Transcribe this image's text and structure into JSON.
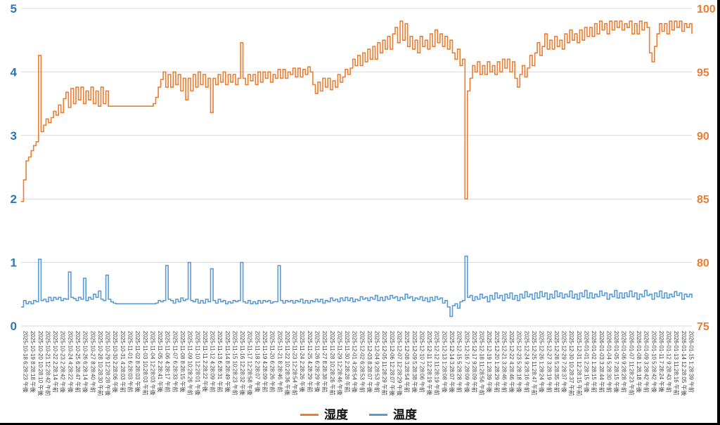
{
  "page": {
    "background": "#ffffff"
  },
  "chart_data": {
    "type": "line",
    "title": "",
    "grid": true,
    "grid_color": "#D9D9D9",
    "tick_label_color": "#404040",
    "legend_position": "bottom",
    "points_per_label": 3,
    "left_axis": {
      "min": 0,
      "max": 5,
      "ticks": [
        0,
        1,
        2,
        3,
        4,
        5
      ],
      "label_color": "#2E75B6"
    },
    "right_axis": {
      "min": 75,
      "max": 100,
      "ticks": [
        75,
        80,
        85,
        90,
        95,
        100
      ],
      "label_color": "#ED7D31"
    },
    "x_labels": [
      "2025-10-18 6:28:23 午後",
      "2025-10-19 8:28:18 午後",
      "2025-10-20 10:28:10 午後",
      "2025-10-21 12:28:42 午前",
      "2025-10-22 2:28:14 午前",
      "2025-10-23 2:28:42 午後",
      "2025-10-24 4:28:22 午後",
      "2025-10-25 6:28:47 午前",
      "2025-10-26 6:28:14 午後",
      "2025-10-27 8:28:40 午前",
      "2025-10-28 10:28:30 午前",
      "2025-10-29 12:28:28 午後",
      "2025-10-30 2:28:06 午後",
      "2025-10-31 4:28:03 午前",
      "2025-11-01 6:28:03 午前",
      "2025-11-02 8:28:03 午後",
      "2025-11-03 10:28:03 午前",
      "2025-11-04 12:28:03 午後",
      "2025-11-05 2:28:41 午後",
      "2025-11-06 4:28:17 午前",
      "2025-11-07 6:28:33 午前",
      "2025-11-08 8:28:15 午後",
      "2025-11-09 10:28:26 午前",
      "2025-11-10 12:28:01 午後",
      "2025-11-11 2:28:22 午後",
      "2025-11-12 4:28:09 午前",
      "2025-11-13 6:28:31 午前",
      "2025-11-14 8:28:49 午後",
      "2025-11-15 10:28:23 午前",
      "2025-11-16 12:28:32 午後",
      "2025-11-17 12:28:58 午後",
      "2025-11-18 2:28:07 午後",
      "2025-11-19 4:28:09 午前",
      "2025-11-20 6:28:26 午前",
      "2025-11-21 8:28:46 午前",
      "2025-11-22 10:28:36 午後",
      "2025-11-23 12:28:54 午前",
      "2025-11-24 2:28:26 午後",
      "2025-11-25 4:28:29 午前",
      "2025-11-26 6:28:29 午後",
      "2025-11-27 8:28:38 午前",
      "2025-11-28 10:28:26 午前",
      "2025-11-29 12:28:46 午後",
      "2025-11-30 2:28:28 午前",
      "2025-12-01 4:28:54 午後",
      "2025-12-02 6:28:53 午前",
      "2025-12-03 8:28:07 午後",
      "2025-12-04 9:28:53 午前",
      "2025-12-05 11:28:29 午前",
      "2025-12-06 12:28:07 午後",
      "2025-12-07 12:28:29 午後",
      "2025-12-08 3:28:54 午前",
      "2025-12-09 5:28:38 午後",
      "2025-12-10 7:28:06 午前",
      "2025-12-11 12:28:19 午後",
      "2025-12-12 11:28:19 午前",
      "2025-12-13 1:28:08 午後",
      "2025-12-14 3:28:07 午後",
      "2025-12-15 5:28:28 午前",
      "2025-12-16 7:28:09 午後",
      "2025-12-17 9:28:09 午前",
      "2025-12-18 11:28:56 午前",
      "2025-12-19 1:28:39 午後",
      "2025-12-20 1:28:29 午前",
      "2025-12-21 3:28:46 午前",
      "2025-12-22 4:28:46 午後",
      "2025-12-23 5:28:18 午後",
      "2025-12-24 9:28:16 午前",
      "2025-12-25 11:28:47 午前",
      "2025-12-26 1:28:24 午後",
      "2025-12-27 3:28:19 午前",
      "2025-12-28 5:28:35 午前",
      "2025-12-29 7:28:37 午後",
      "2025-12-30 10:28:37 午前",
      "2025-12-31 12:28:15 午前",
      "2026-01-01 2:28:15 午後",
      "2026-01-02 1:28:15 午前",
      "2026-01-03 3:28:44 午前",
      "2026-01-04 5:28:30 午前",
      "2026-01-05 7:28:15 午後",
      "2026-01-06 9:28:28 午前",
      "2026-01-07 11:28:23 午前",
      "2026-01-08 1:28:18 午後",
      "2026-01-09 3:28:42 午前",
      "2026-01-10 5:28:42 午後",
      "2026-01-11 7:28:24 午後",
      "2026-01-12 9:28:43 午前",
      "2026-01-13 11:28:16 午前",
      "2026-01-14 12:28:05 午後",
      "2026-01-15 1:28:39 午前"
    ],
    "series": [
      {
        "name": "湿度",
        "color": "#ED7D31",
        "axis": "right",
        "values": [
          84.8,
          86.5,
          88,
          88.3,
          88.8,
          89.2,
          89.5,
          96.3,
          90.3,
          90.8,
          91.3,
          91,
          91.4,
          91.9,
          91.6,
          92.4,
          91.8,
          92.9,
          93.4,
          92.2,
          93.7,
          92.5,
          93.8,
          92.8,
          93.8,
          92.5,
          93.5,
          92.8,
          93.8,
          92.5,
          93.5,
          92.3,
          93.8,
          92.5,
          93.5,
          92.3,
          92.3,
          92.3,
          92.3,
          92.3,
          92.3,
          92.3,
          92.3,
          92.3,
          92.3,
          92.3,
          92.3,
          92.3,
          92.3,
          92.3,
          92.3,
          92.3,
          92.3,
          92.5,
          93,
          93.8,
          94.4,
          95,
          93.8,
          94.8,
          93.8,
          95,
          94,
          94.8,
          93.5,
          94.5,
          92.8,
          94.5,
          93.5,
          94.8,
          93.8,
          95,
          94,
          94.8,
          93.8,
          94.5,
          91.8,
          94.5,
          94,
          94.8,
          94.2,
          95,
          94,
          94.8,
          94.2,
          94.8,
          94,
          94.5,
          97.3,
          94.5,
          94,
          94.8,
          94.3,
          94.8,
          94,
          95,
          94.2,
          95,
          94.5,
          95,
          94.2,
          94.8,
          94.5,
          95.2,
          94.5,
          95.2,
          94.5,
          95,
          94.8,
          95.3,
          94.6,
          95.3,
          94.6,
          95.2,
          94.8,
          95.4,
          95,
          94,
          93.3,
          94.2,
          93.5,
          94.5,
          93.8,
          94.5,
          93.6,
          94.3,
          93.8,
          94.8,
          94.2,
          94.6,
          95.2,
          94.8,
          95.3,
          96,
          95.5,
          96.3,
          95.5,
          96.5,
          95.8,
          96.8,
          96,
          97,
          96,
          97.3,
          96.5,
          97.5,
          96.8,
          97.8,
          96.8,
          98,
          98.5,
          97.3,
          99,
          97.5,
          98.8,
          97,
          97.8,
          96.8,
          97.5,
          96.5,
          97.8,
          97,
          97.5,
          96.8,
          98,
          97,
          98.3,
          97.3,
          98,
          97,
          97.8,
          96.8,
          97.5,
          96.5,
          96,
          96.8,
          95.5,
          96,
          85,
          93.5,
          94.5,
          95.5,
          95,
          95.8,
          94.8,
          95.5,
          94.8,
          95.8,
          95,
          95.5,
          94.8,
          95.8,
          95,
          96,
          95.3,
          96,
          95,
          95.8,
          94.5,
          93.8,
          94.8,
          95.5,
          94.6,
          95.3,
          96.3,
          95.5,
          96.5,
          97.3,
          96.3,
          97,
          98,
          96.8,
          97.5,
          96.8,
          97.8,
          97,
          97.5,
          96.8,
          98,
          97.3,
          98.3,
          97.5,
          98,
          97.3,
          98.3,
          97.5,
          98.5,
          97.8,
          98.5,
          97.8,
          98.8,
          98,
          99,
          98.3,
          98.8,
          98,
          99,
          98.3,
          99,
          98.5,
          99,
          98.3,
          98.8,
          98.5,
          99,
          98,
          98.8,
          98,
          99,
          98.3,
          98.9,
          98.5,
          96.5,
          95.8,
          97,
          98,
          98.8,
          98.2,
          98.8,
          98,
          99,
          98.3,
          99,
          98.5,
          99,
          98.2,
          98.8,
          98.5,
          98.8,
          98
        ]
      },
      {
        "name": "温度",
        "color": "#5B9BD5",
        "axis": "left",
        "values": [
          0.3,
          0.4,
          0.35,
          0.38,
          0.35,
          0.4,
          0.38,
          1.05,
          0.4,
          0.42,
          0.38,
          0.45,
          0.4,
          0.45,
          0.42,
          0.45,
          0.4,
          0.43,
          0.42,
          0.85,
          0.45,
          0.43,
          0.4,
          0.45,
          0.42,
          0.75,
          0.4,
          0.45,
          0.42,
          0.5,
          0.45,
          0.55,
          0.42,
          0.4,
          0.8,
          0.42,
          0.38,
          0.36,
          0.35,
          0.35,
          0.35,
          0.35,
          0.35,
          0.35,
          0.35,
          0.35,
          0.35,
          0.35,
          0.35,
          0.35,
          0.35,
          0.35,
          0.35,
          0.35,
          0.36,
          0.4,
          0.38,
          0.4,
          0.95,
          0.42,
          0.4,
          0.36,
          0.42,
          0.38,
          0.44,
          0.4,
          0.42,
          1,
          0.4,
          0.38,
          0.42,
          0.36,
          0.4,
          0.36,
          0.42,
          0.38,
          0.9,
          0.4,
          0.36,
          0.42,
          0.38,
          0.4,
          0.35,
          0.38,
          0.36,
          0.4,
          0.38,
          0.4,
          1,
          0.38,
          0.36,
          0.4,
          0.35,
          0.38,
          0.35,
          0.4,
          0.36,
          0.4,
          0.38,
          0.4,
          0.36,
          0.38,
          0.38,
          0.95,
          0.4,
          0.36,
          0.4,
          0.38,
          0.4,
          0.36,
          0.4,
          0.38,
          0.42,
          0.36,
          0.4,
          0.36,
          0.4,
          0.38,
          0.42,
          0.38,
          0.42,
          0.36,
          0.4,
          0.38,
          0.44,
          0.4,
          0.42,
          0.38,
          0.44,
          0.4,
          0.45,
          0.4,
          0.44,
          0.38,
          0.42,
          0.4,
          0.46,
          0.42,
          0.44,
          0.4,
          0.45,
          0.42,
          0.48,
          0.4,
          0.45,
          0.4,
          0.46,
          0.42,
          0.48,
          0.44,
          0.46,
          0.4,
          0.45,
          0.42,
          0.5,
          0.44,
          0.46,
          0.4,
          0.44,
          0.42,
          0.46,
          0.4,
          0.44,
          0.38,
          0.45,
          0.4,
          0.46,
          0.42,
          0.44,
          0.36,
          0.4,
          0.3,
          0.15,
          0.32,
          0.35,
          0.28,
          0.38,
          0.4,
          1.1,
          0.45,
          0.48,
          0.4,
          0.46,
          0.42,
          0.5,
          0.44,
          0.46,
          0.38,
          0.48,
          0.42,
          0.52,
          0.44,
          0.48,
          0.4,
          0.5,
          0.44,
          0.52,
          0.42,
          0.48,
          0.4,
          0.5,
          0.44,
          0.54,
          0.46,
          0.5,
          0.42,
          0.52,
          0.44,
          0.54,
          0.46,
          0.52,
          0.42,
          0.5,
          0.44,
          0.55,
          0.46,
          0.52,
          0.44,
          0.5,
          0.46,
          0.55,
          0.44,
          0.5,
          0.42,
          0.52,
          0.46,
          0.56,
          0.44,
          0.52,
          0.44,
          0.5,
          0.46,
          0.55,
          0.48,
          0.52,
          0.42,
          0.5,
          0.46,
          0.56,
          0.44,
          0.52,
          0.44,
          0.52,
          0.46,
          0.55,
          0.46,
          0.52,
          0.42,
          0.5,
          0.46,
          0.56,
          0.48,
          0.5,
          0.42,
          0.52,
          0.46,
          0.55,
          0.44,
          0.52,
          0.44,
          0.5,
          0.46,
          0.54,
          0.48,
          0.52,
          0.42,
          0.5,
          0.46,
          0.5,
          0.44
        ]
      }
    ]
  }
}
